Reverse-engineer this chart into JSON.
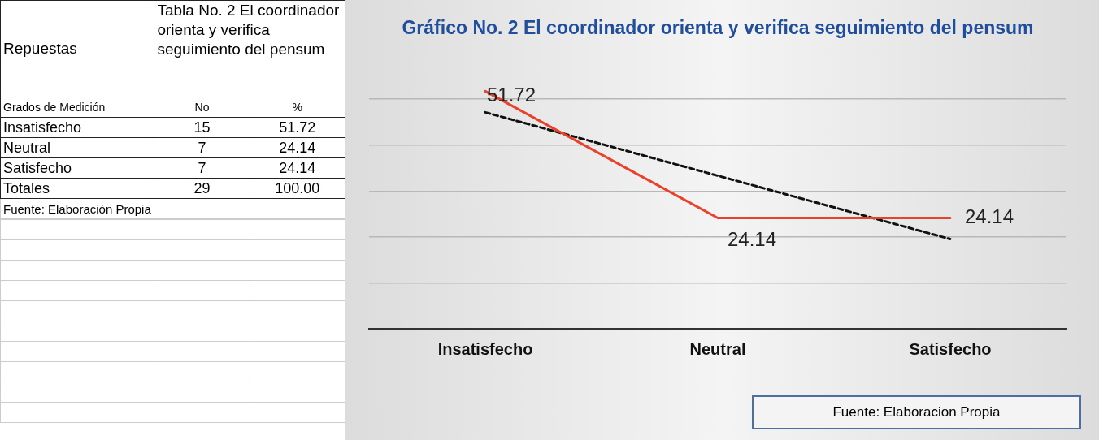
{
  "chart_data": [
    {
      "type": "other",
      "title": "Tabla No. 2 El coordinador orienta y verifica seguimiento del pensum",
      "xlabel": "Grados de Medición",
      "annotations": [
        "Repuestas",
        "Fuente: Elaboración Propia"
      ],
      "categories": [
        "Insatisfecho",
        "Neutral",
        "Satisfecho",
        "Totales"
      ],
      "data_labels": true,
      "series": [
        {
          "name": "No",
          "values": [
            15,
            7,
            7,
            29
          ]
        },
        {
          "name": "%",
          "values": [
            51.72,
            24.14,
            24.14,
            100
          ],
          "value_labels": [
            "51.72",
            "24.14",
            "24.14",
            "100.00"
          ]
        }
      ]
    },
    {
      "type": "line",
      "title": "Gráfico No. 2 El coordinador orienta y verifica seguimiento del pensum",
      "annotations": [
        "Fuente: Elaboracion Propia"
      ],
      "categories": [
        "Insatisfecho",
        "Neutral",
        "Satisfecho"
      ],
      "series": [
        {
          "color": "#e8412c",
          "values": [
            51.72,
            24.14,
            24.14
          ],
          "value_labels": [
            "51.72",
            "24.14",
            "24.14"
          ]
        },
        {
          "type": "line",
          "color": "#111111",
          "line_style": "dashed",
          "values": [
            47.13,
            33.33,
            19.54
          ]
        }
      ],
      "yticks": [
        {
          "value": 0,
          "label": null
        },
        {
          "value": 10,
          "label": null
        },
        {
          "value": 20,
          "label": null
        },
        {
          "value": 30,
          "label": null
        },
        {
          "value": 40,
          "label": null
        },
        {
          "value": 50,
          "label": null
        }
      ],
      "grid": "y",
      "tick_labels": "x",
      "legend": false,
      "marker": "none"
    }
  ]
}
